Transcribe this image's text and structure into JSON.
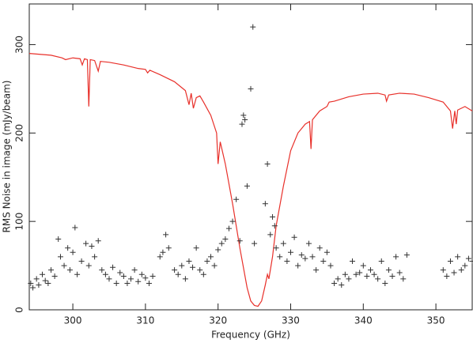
{
  "chart_data": {
    "type": "scatter",
    "xlabel": "Frequency (GHz)",
    "ylabel": "RMS Noise in image (mJy/beam)",
    "xlim": [
      294,
      355
    ],
    "ylim": [
      0,
      346
    ],
    "xticks": [
      300,
      310,
      320,
      330,
      340,
      350
    ],
    "yticks": [
      0,
      100,
      200,
      300
    ],
    "series": [
      {
        "type": "line",
        "color": "#e8302a",
        "x": [
          294,
          297,
          298.5,
          299,
          300,
          301,
          301.3,
          301.6,
          302,
          302.2,
          302.4,
          303,
          303.5,
          303.8,
          305,
          307,
          309,
          310,
          310.3,
          310.6,
          312,
          314,
          315.5,
          316,
          316.3,
          316.6,
          317,
          317.5,
          318,
          319,
          319.8,
          320,
          320.3,
          321,
          322,
          323,
          324,
          324.5,
          325,
          325.5,
          326,
          326.5,
          326.8,
          327,
          327.5,
          328,
          329,
          330,
          331,
          332,
          332.6,
          332.8,
          333,
          334,
          335,
          335.3,
          336,
          338,
          340,
          342,
          343,
          343.2,
          343.5,
          345,
          347,
          349,
          351,
          352,
          352.3,
          352.6,
          352.8,
          353,
          354,
          355
        ],
        "values": [
          290,
          288,
          285,
          283,
          285,
          284,
          277,
          284,
          283,
          230,
          283,
          282,
          270,
          281,
          280,
          277,
          273,
          272,
          268,
          271,
          266,
          258,
          248,
          232,
          245,
          228,
          240,
          242,
          235,
          220,
          200,
          165,
          190,
          165,
          120,
          70,
          25,
          10,
          5,
          4,
          10,
          28,
          40,
          35,
          60,
          95,
          140,
          180,
          200,
          210,
          213,
          182,
          215,
          225,
          230,
          235,
          236,
          241,
          244,
          245,
          243,
          236,
          243,
          245,
          244,
          240,
          235,
          225,
          205,
          225,
          210,
          226,
          230,
          225
        ]
      },
      {
        "type": "scatter",
        "color": "#333333",
        "x": [
          294.2,
          294.5,
          295,
          295.3,
          295.8,
          296.2,
          296.6,
          297,
          297.5,
          298,
          298.3,
          298.8,
          299.3,
          299.6,
          300,
          300.3,
          300.6,
          301.2,
          301.8,
          302.2,
          302.6,
          303,
          303.5,
          304,
          304.5,
          305,
          305.5,
          306,
          306.5,
          307,
          307.5,
          308,
          308.5,
          309,
          309.5,
          310,
          310.5,
          311,
          312,
          312.4,
          312.8,
          313.2,
          314,
          314.5,
          315,
          315.5,
          316,
          316.5,
          317,
          317.5,
          318,
          318.5,
          319,
          319.5,
          320,
          320.5,
          321,
          321.5,
          322,
          322.5,
          323,
          323.3,
          323.5,
          323.7,
          324,
          324.5,
          324.8,
          325,
          326.5,
          326.8,
          327.2,
          327.5,
          327.8,
          328,
          328.5,
          329,
          329.5,
          330,
          330.5,
          331,
          331.5,
          332,
          332.5,
          333,
          333.5,
          334,
          334.5,
          335,
          335.5,
          336,
          336.5,
          337,
          337.5,
          338,
          338.5,
          339,
          339.5,
          340,
          340.5,
          341,
          341.5,
          342,
          342.5,
          343,
          343.5,
          344,
          344.5,
          345,
          345.5,
          346,
          351,
          351.5,
          352,
          352.5,
          353,
          353.5,
          354,
          354.5,
          355
        ],
        "values": [
          30,
          25,
          35,
          28,
          40,
          33,
          30,
          45,
          38,
          80,
          60,
          50,
          70,
          45,
          65,
          93,
          40,
          55,
          75,
          50,
          72,
          60,
          78,
          45,
          40,
          35,
          48,
          30,
          42,
          38,
          30,
          35,
          45,
          32,
          40,
          36,
          30,
          38,
          60,
          65,
          85,
          70,
          45,
          40,
          50,
          35,
          55,
          48,
          70,
          45,
          40,
          55,
          60,
          50,
          68,
          75,
          80,
          92,
          100,
          125,
          78,
          210,
          220,
          215,
          140,
          250,
          320,
          75,
          120,
          165,
          85,
          105,
          95,
          70,
          60,
          75,
          55,
          65,
          82,
          50,
          62,
          58,
          75,
          60,
          45,
          70,
          55,
          65,
          50,
          30,
          35,
          28,
          40,
          35,
          55,
          40,
          42,
          50,
          38,
          45,
          40,
          35,
          55,
          30,
          45,
          38,
          60,
          42,
          35,
          62,
          45,
          38,
          55,
          42,
          60,
          45,
          50,
          58,
          55
        ]
      }
    ]
  }
}
